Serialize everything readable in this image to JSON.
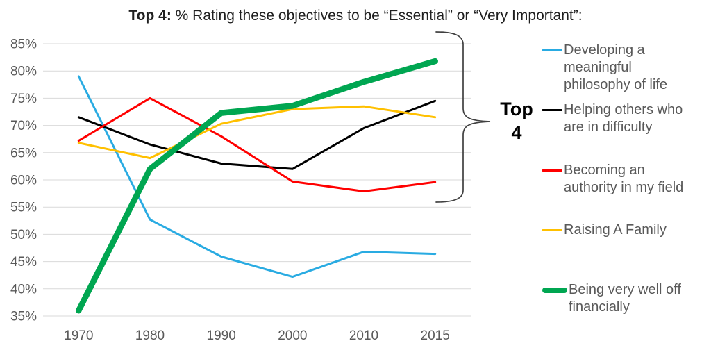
{
  "title": {
    "prefix": "Top 4:",
    "rest": " % Rating these objectives to be “Essential” or “Very Important”:"
  },
  "top4_annotation": {
    "line1": "Top",
    "line2": "4"
  },
  "colors": {
    "gridline": "#D9D9D9",
    "axis_text": "#595959",
    "legend_text": "#595959",
    "bracket": "#404040",
    "title_text": "#1F1F1F"
  },
  "chart_data": {
    "type": "line",
    "title": "Top 4: % Rating these objectives to be “Essential” or “Very Important”:",
    "categories": [
      "1970",
      "1980",
      "1990",
      "2000",
      "2010",
      "2015"
    ],
    "ylim": [
      35,
      85
    ],
    "tick_step": 5,
    "y_ticks": [
      "85%",
      "80%",
      "75%",
      "70%",
      "65%",
      "60%",
      "55%",
      "50%",
      "45%",
      "40%",
      "35%"
    ],
    "grid": true,
    "legend_position": "right",
    "series": [
      {
        "id": "philosophy-of-life",
        "name": "Developing a meaningful philosophy of life",
        "legend_lines": [
          "Developing a",
          "meaningful",
          "philosophy of life"
        ],
        "color": "#29ABE2",
        "width": 3,
        "values": [
          79,
          52.7,
          45.9,
          42.2,
          46.8,
          46.4
        ]
      },
      {
        "id": "helping-others",
        "name": "Helping others who are in difficulty",
        "legend_lines": [
          "Helping others who",
          "are in difficulty"
        ],
        "color": "#000000",
        "width": 3,
        "values": [
          71.5,
          66.5,
          63,
          62,
          69.5,
          74.5
        ]
      },
      {
        "id": "authority-in-my-field",
        "name": "Becoming an authority in my field",
        "legend_lines": [
          "Becoming an",
          "authority in my field"
        ],
        "color": "#FF0000",
        "width": 3,
        "values": [
          67.2,
          75,
          68,
          59.7,
          57.9,
          59.6
        ]
      },
      {
        "id": "raising-a-family",
        "name": "Raising A Family",
        "legend_lines": [
          "Raising A Family"
        ],
        "color": "#FFC000",
        "width": 3,
        "values": [
          66.8,
          64,
          70.3,
          73,
          73.5,
          71.5
        ]
      },
      {
        "id": "well-off-financially",
        "name": "Being very well off financially",
        "legend_lines": [
          "Being very well off",
          "financially"
        ],
        "color": "#00A651",
        "width": 8.5,
        "values": [
          36,
          62,
          72.3,
          73.6,
          78,
          81.8
        ]
      }
    ]
  }
}
